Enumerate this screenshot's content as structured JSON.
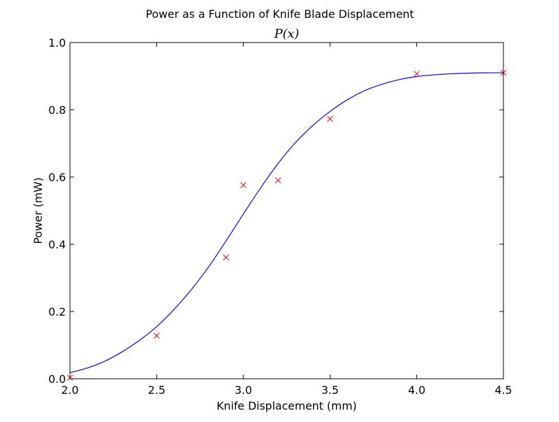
{
  "chart_data": {
    "type": "line",
    "title": "Power as a Function of Knife Blade Displacement",
    "subtitle": "P(x)",
    "xlabel": "Knife Displacement (mm)",
    "ylabel": "Power (mW)",
    "xlim": [
      2.0,
      4.5
    ],
    "ylim": [
      0.0,
      1.0
    ],
    "xticks": [
      "2.0",
      "2.5",
      "3.0",
      "3.5",
      "4.0",
      "4.5"
    ],
    "yticks": [
      "0.0",
      "0.2",
      "0.4",
      "0.6",
      "0.8",
      "1.0"
    ],
    "grid": false,
    "series": [
      {
        "kind": "markers",
        "marker": "x",
        "color": "#ff0000",
        "x": [
          2.0,
          2.5,
          2.9,
          3.0,
          3.2,
          3.5,
          4.0,
          4.5
        ],
        "y": [
          0.003,
          0.128,
          0.361,
          0.576,
          0.59,
          0.773,
          0.907,
          0.91
        ]
      },
      {
        "kind": "line",
        "color": "#0000ff",
        "x": [
          2.0,
          2.1,
          2.2,
          2.3,
          2.4,
          2.5,
          2.6,
          2.7,
          2.8,
          2.9,
          3.0,
          3.1,
          3.2,
          3.3,
          3.4,
          3.5,
          3.6,
          3.7,
          3.8,
          3.9,
          4.0,
          4.1,
          4.2,
          4.3,
          4.4,
          4.5
        ],
        "y": [
          0.018,
          0.032,
          0.052,
          0.08,
          0.114,
          0.155,
          0.206,
          0.265,
          0.333,
          0.41,
          0.49,
          0.568,
          0.64,
          0.702,
          0.753,
          0.795,
          0.83,
          0.857,
          0.876,
          0.89,
          0.899,
          0.904,
          0.907,
          0.909,
          0.91,
          0.91
        ]
      }
    ]
  }
}
